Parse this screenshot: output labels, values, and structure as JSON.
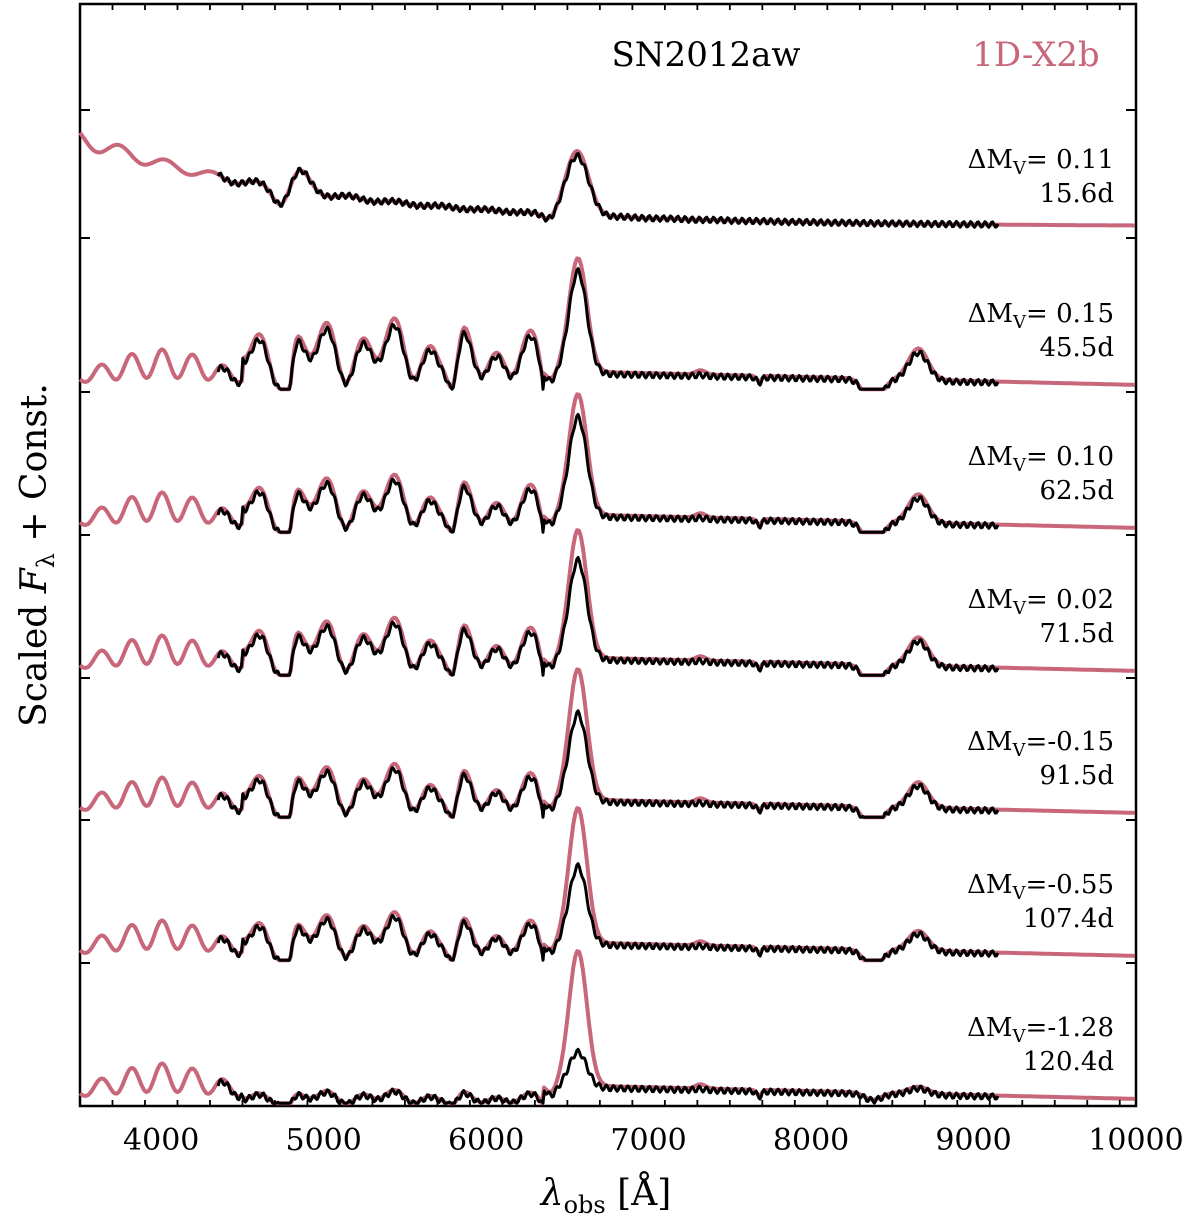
{
  "chart_data": {
    "type": "line",
    "title_object": "SN2012aw",
    "title_model": "1D-X2b",
    "xlabel_symbol": "λ",
    "xlabel_subscript": "obs",
    "xlabel_unit": " [Å]",
    "ylabel_main": "Scaled ",
    "ylabel_symbol": "F",
    "ylabel_subscript": "λ",
    "ylabel_tail": " + Const.",
    "xlim": [
      3500,
      10000
    ],
    "xticks": [
      4000,
      5000,
      6000,
      7000,
      8000,
      9000,
      10000
    ],
    "colors": {
      "model": "#c8667a",
      "observed": "#000000",
      "axis": "#000000"
    },
    "series_names": {
      "model": "1D-X2b",
      "observed": "SN2012aw"
    },
    "panels": [
      {
        "dmv_label": "ΔM",
        "dmv_sub": "V",
        "dmv_value": "= 0.11",
        "epoch": "15.6d",
        "halpha_model": 0.45,
        "halpha_obs": 0.4,
        "metal": 0.12,
        "early": true,
        "ca_abs": 0.02
      },
      {
        "dmv_label": "ΔM",
        "dmv_sub": "V",
        "dmv_value": "= 0.15",
        "epoch": "45.5d",
        "halpha_model": 0.8,
        "halpha_obs": 0.72,
        "metal": 0.55,
        "early": false,
        "ca_abs": 0.22
      },
      {
        "dmv_label": "ΔM",
        "dmv_sub": "V",
        "dmv_value": "= 0.10",
        "epoch": "62.5d",
        "halpha_model": 0.85,
        "halpha_obs": 0.7,
        "metal": 0.45,
        "early": false,
        "ca_abs": 0.2
      },
      {
        "dmv_label": "ΔM",
        "dmv_sub": "V",
        "dmv_value": "= 0.02",
        "epoch": "71.5d",
        "halpha_model": 0.9,
        "halpha_obs": 0.7,
        "metal": 0.45,
        "early": false,
        "ca_abs": 0.2
      },
      {
        "dmv_label": "ΔM",
        "dmv_sub": "V",
        "dmv_value": "=-0.15",
        "epoch": "91.5d",
        "halpha_model": 0.92,
        "halpha_obs": 0.62,
        "metal": 0.42,
        "early": false,
        "ca_abs": 0.18
      },
      {
        "dmv_label": "ΔM",
        "dmv_sub": "V",
        "dmv_value": "=-0.55",
        "epoch": "107.4d",
        "halpha_model": 0.95,
        "halpha_obs": 0.55,
        "metal": 0.38,
        "early": false,
        "ca_abs": 0.14
      },
      {
        "dmv_label": "ΔM",
        "dmv_sub": "V",
        "dmv_value": "=-1.28",
        "epoch": "120.4d",
        "halpha_model": 0.95,
        "halpha_obs": 0.25,
        "metal": 0.12,
        "early": false,
        "ca_abs": 0.05
      }
    ]
  }
}
